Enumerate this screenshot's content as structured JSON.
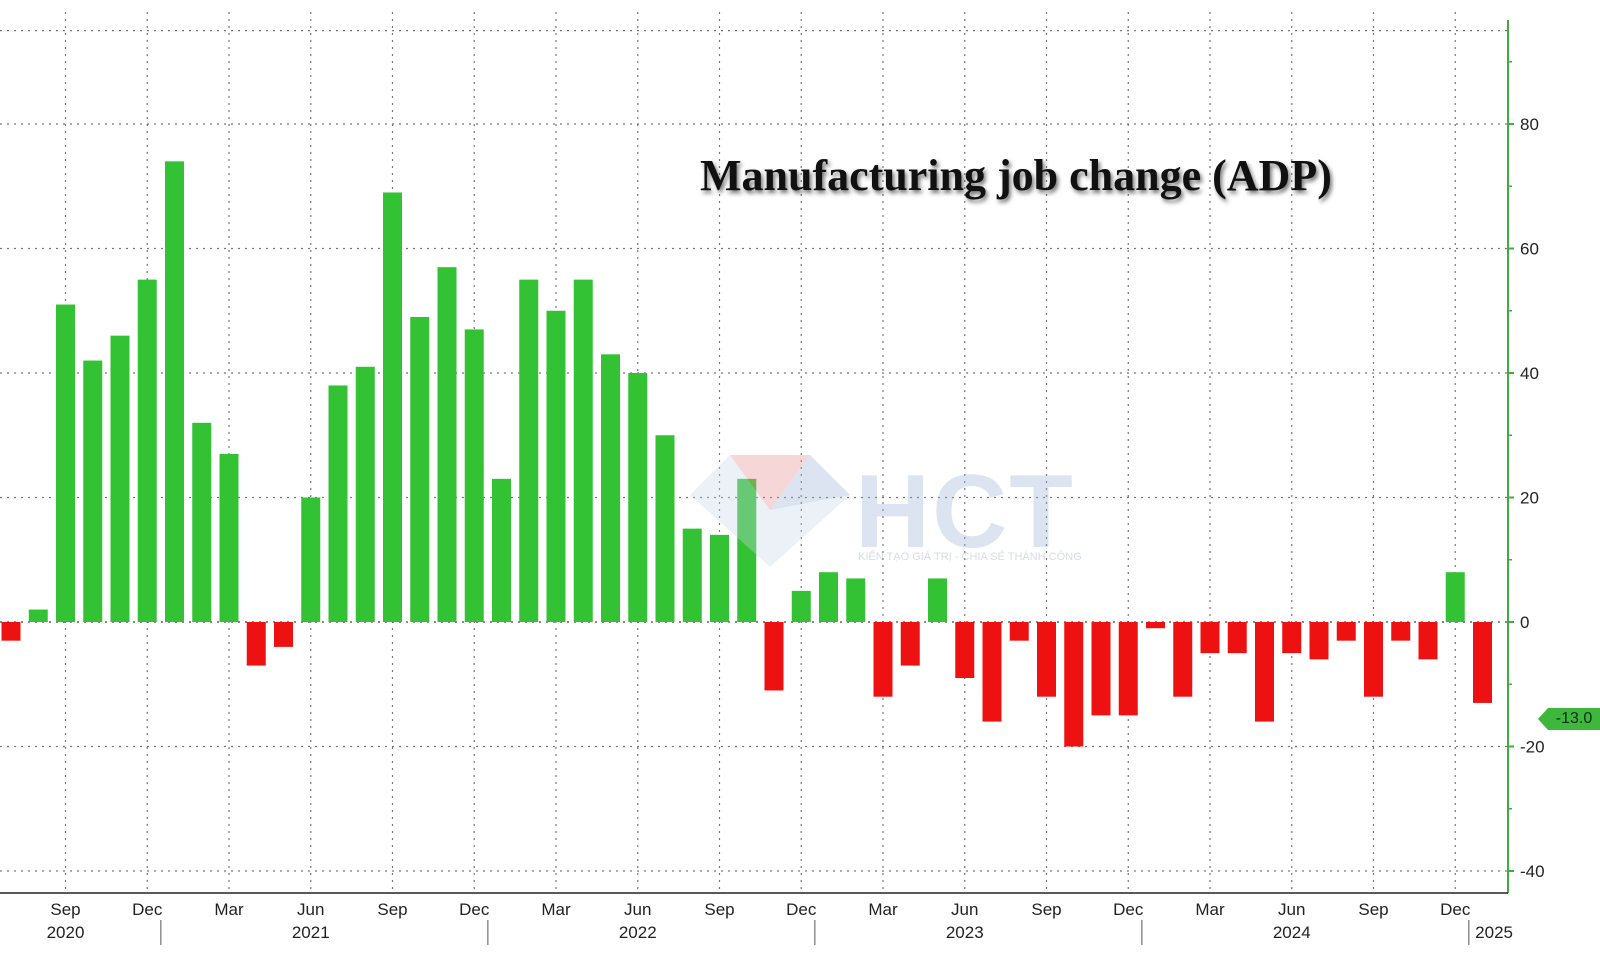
{
  "chart_data": {
    "type": "bar",
    "title": "Manufacturing job change (ADP)",
    "ylim": [
      -40,
      95
    ],
    "yticks": [
      80,
      60,
      40,
      20,
      0,
      -20,
      -40
    ],
    "y_axis_position": "right",
    "grid": true,
    "colors": {
      "positive": "#33c233",
      "negative": "#ee1111",
      "axis": "#3fae3f"
    },
    "last_value_label": "-13.0",
    "x_month_labels": [
      "Sep",
      "Dec",
      "Mar",
      "Jun",
      "Sep",
      "Dec",
      "Mar",
      "Jun",
      "Sep",
      "Dec",
      "Mar",
      "Jun",
      "Sep",
      "Dec",
      "Mar",
      "Jun",
      "Sep",
      "Dec"
    ],
    "x_year_labels": [
      "2020",
      "2021",
      "2022",
      "2023",
      "2024",
      "2025"
    ],
    "categories": [
      "2020-07",
      "2020-08",
      "2020-09",
      "2020-10",
      "2020-11",
      "2020-12",
      "2021-01",
      "2021-02",
      "2021-03",
      "2021-04",
      "2021-05",
      "2021-06",
      "2021-07",
      "2021-08",
      "2021-09",
      "2021-10",
      "2021-11",
      "2021-12",
      "2022-01",
      "2022-02",
      "2022-03",
      "2022-04",
      "2022-05",
      "2022-06",
      "2022-07",
      "2022-08",
      "2022-09",
      "2022-10",
      "2022-11",
      "2022-12",
      "2023-01",
      "2023-02",
      "2023-03",
      "2023-04",
      "2023-05",
      "2023-06",
      "2023-07",
      "2023-08",
      "2023-09",
      "2023-10",
      "2023-11",
      "2023-12",
      "2024-01",
      "2024-02",
      "2024-03",
      "2024-04",
      "2024-05",
      "2024-06",
      "2024-07",
      "2024-08",
      "2024-09",
      "2024-10",
      "2024-11",
      "2024-12",
      "2025-01"
    ],
    "values": [
      -3,
      2,
      51,
      42,
      46,
      55,
      74,
      32,
      27,
      -7,
      -4,
      20,
      38,
      41,
      69,
      49,
      57,
      47,
      23,
      55,
      50,
      55,
      43,
      40,
      30,
      15,
      14,
      23,
      -11,
      5,
      8,
      7,
      -12,
      -7,
      7,
      -9,
      -16,
      -3,
      -12,
      -20,
      -15,
      -15,
      -1,
      -12,
      -5,
      -5,
      -16,
      -5,
      -6,
      -3,
      -12,
      -3,
      -6,
      8,
      -13
    ]
  },
  "watermark": {
    "brand": "HCT",
    "tagline": "KIẾN TẠO GIÁ TRỊ - CHIA SẺ THÀNH CÔNG"
  }
}
